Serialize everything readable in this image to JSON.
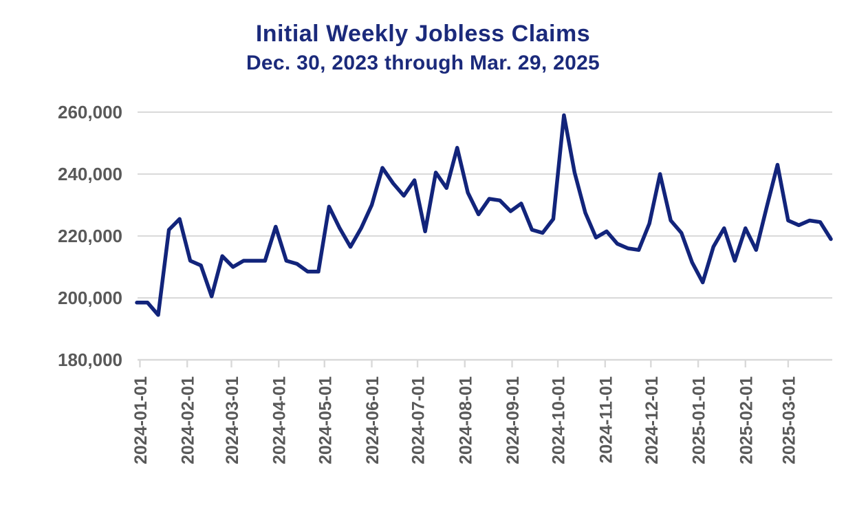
{
  "header": {
    "title": "Initial Weekly Jobless Claims",
    "subtitle": "Dec. 30, 2023 through Mar. 29, 2025"
  },
  "colors": {
    "line": "#12247b",
    "title_text": "#1b2a7b",
    "axis_text": "#595959",
    "gridline": "#d9d9d9"
  },
  "chart_data": {
    "type": "line",
    "title": "Initial Weekly Jobless Claims",
    "subtitle": "Dec. 30, 2023 through Mar. 29, 2025",
    "series_name": "Initial weekly jobless claims",
    "start_date": "2023-12-30",
    "end_date": "2025-03-29",
    "frequency": "weekly",
    "grid": "horizontal",
    "legend_position": "none",
    "ylim": [
      180000,
      260000
    ],
    "y_ticks": [
      180000,
      200000,
      220000,
      240000,
      260000
    ],
    "y_tick_labels": [
      "180,000",
      "200,000",
      "220,000",
      "240,000",
      "260,000"
    ],
    "x_tick_labels": [
      "2024-01-01",
      "2024-02-01",
      "2024-03-01",
      "2024-04-01",
      "2024-05-01",
      "2024-06-01",
      "2024-07-01",
      "2024-08-01",
      "2024-09-01",
      "2024-10-01",
      "2024-11-01",
      "2024-12-01",
      "2025-01-01",
      "2025-02-01",
      "2025-03-01"
    ],
    "x": [
      "2023-12-30",
      "2024-01-06",
      "2024-01-13",
      "2024-01-20",
      "2024-01-27",
      "2024-02-03",
      "2024-02-10",
      "2024-02-17",
      "2024-02-24",
      "2024-03-02",
      "2024-03-09",
      "2024-03-16",
      "2024-03-23",
      "2024-03-30",
      "2024-04-06",
      "2024-04-13",
      "2024-04-20",
      "2024-04-27",
      "2024-05-04",
      "2024-05-11",
      "2024-05-18",
      "2024-05-25",
      "2024-06-01",
      "2024-06-08",
      "2024-06-15",
      "2024-06-22",
      "2024-06-29",
      "2024-07-06",
      "2024-07-13",
      "2024-07-20",
      "2024-07-27",
      "2024-08-03",
      "2024-08-10",
      "2024-08-17",
      "2024-08-24",
      "2024-08-31",
      "2024-09-07",
      "2024-09-14",
      "2024-09-21",
      "2024-09-28",
      "2024-10-05",
      "2024-10-12",
      "2024-10-19",
      "2024-10-26",
      "2024-11-02",
      "2024-11-09",
      "2024-11-16",
      "2024-11-23",
      "2024-11-30",
      "2024-12-07",
      "2024-12-14",
      "2024-12-21",
      "2024-12-28",
      "2025-01-04",
      "2025-01-11",
      "2025-01-18",
      "2025-01-25",
      "2025-02-01",
      "2025-02-08",
      "2025-02-15",
      "2025-02-22",
      "2025-03-01",
      "2025-03-08",
      "2025-03-15",
      "2025-03-22",
      "2025-03-29"
    ],
    "values": [
      198500,
      198500,
      194500,
      222000,
      225500,
      212000,
      210500,
      200500,
      213500,
      210000,
      212000,
      212000,
      212000,
      223000,
      212000,
      211000,
      208500,
      208500,
      229500,
      222500,
      216500,
      222500,
      230000,
      242000,
      237000,
      233000,
      238000,
      221500,
      240500,
      235500,
      248500,
      234000,
      227000,
      232000,
      231500,
      228000,
      230500,
      222000,
      221000,
      225500,
      259000,
      240500,
      227500,
      219500,
      221500,
      217500,
      216000,
      215500,
      224000,
      240000,
      225000,
      221000,
      211500,
      205000,
      216500,
      222500,
      212000,
      222500,
      215500,
      229500,
      243000,
      225000,
      223500,
      225000,
      224500,
      219000
    ]
  }
}
